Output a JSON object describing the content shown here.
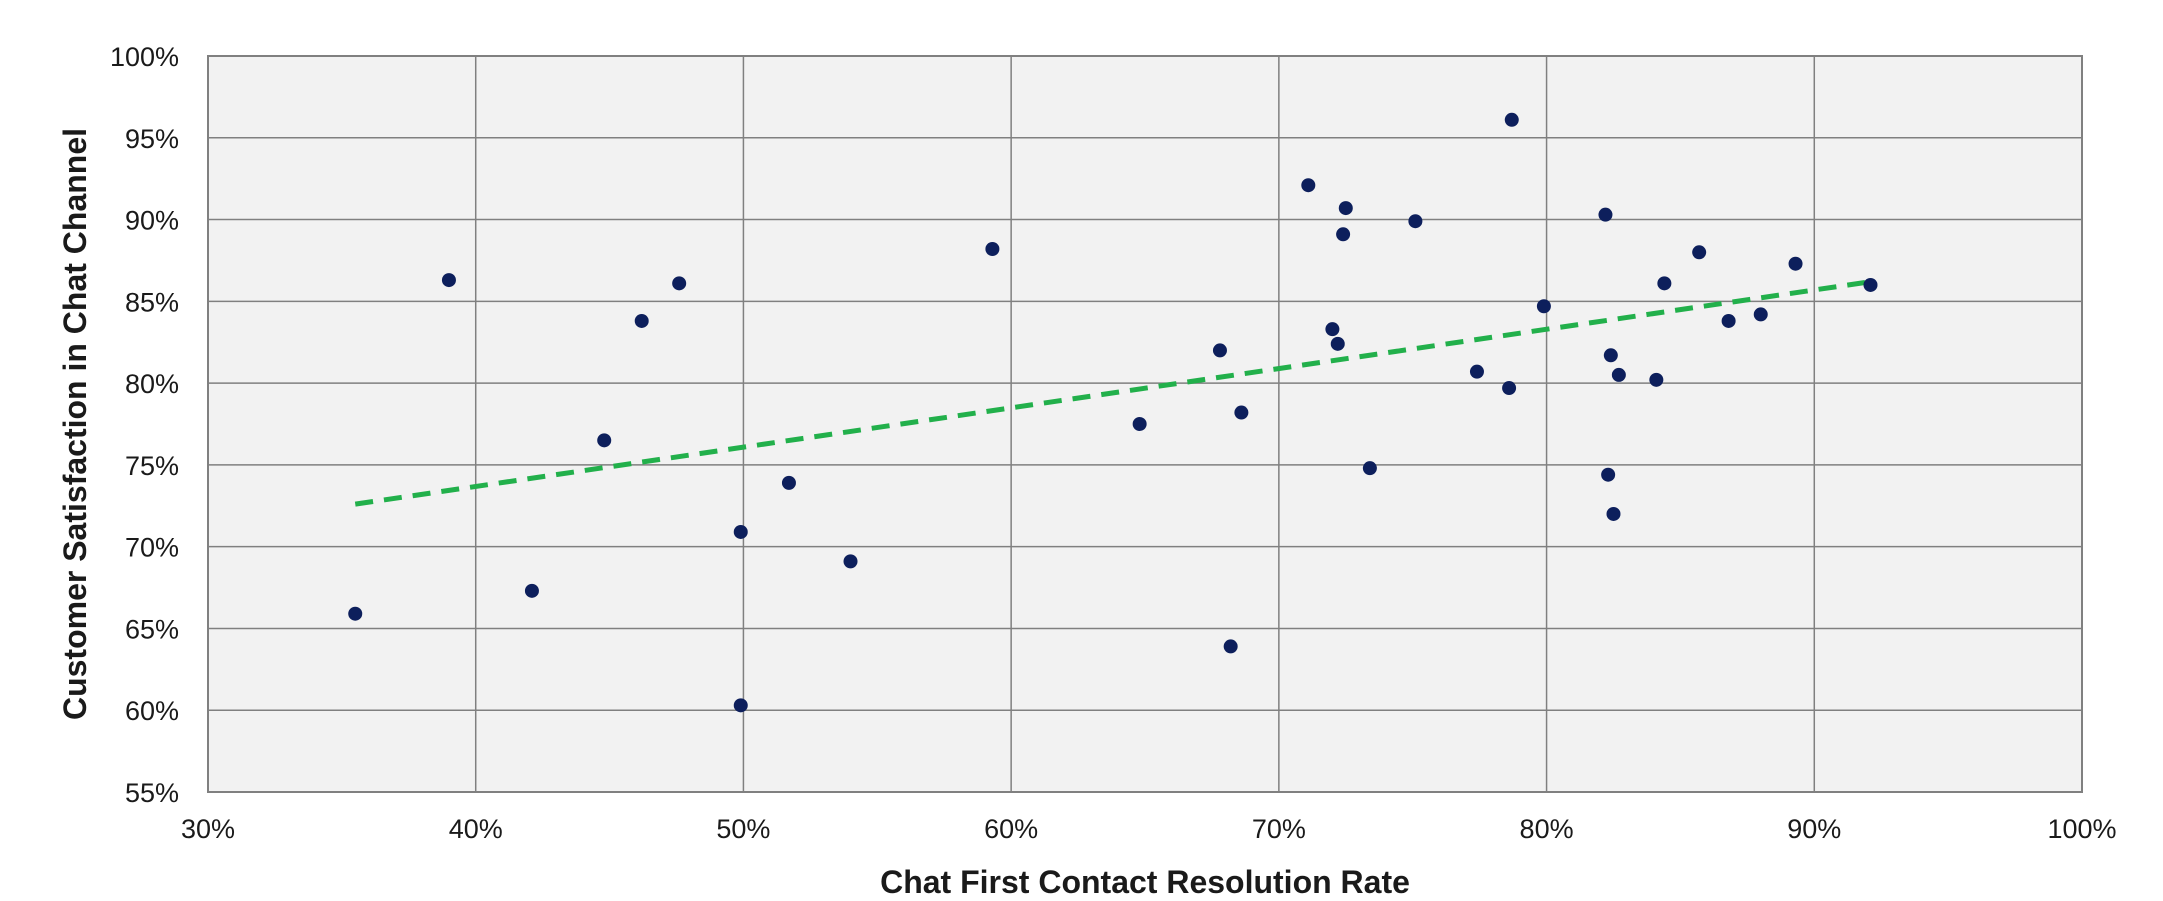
{
  "chart_data": {
    "type": "scatter",
    "title": "",
    "xlabel": "Chat First Contact Resolution Rate",
    "ylabel": "Customer Satisfaction in Chat Channel",
    "xlim": [
      0.3,
      1.0
    ],
    "ylim": [
      0.55,
      1.0
    ],
    "x_ticks": [
      0.3,
      0.4,
      0.5,
      0.6,
      0.7,
      0.8,
      0.9,
      1.0
    ],
    "x_tick_labels": [
      "30%",
      "40%",
      "50%",
      "60%",
      "70%",
      "80%",
      "90%",
      "100%"
    ],
    "y_ticks": [
      0.55,
      0.6,
      0.65,
      0.7,
      0.75,
      0.8,
      0.85,
      0.9,
      0.95,
      1.0
    ],
    "y_tick_labels": [
      "55%",
      "60%",
      "65%",
      "70%",
      "75%",
      "80%",
      "85%",
      "90%",
      "95%",
      "100%"
    ],
    "grid": true,
    "legend": "none",
    "colors": {
      "plot_background": "#f2f2f2",
      "grid": "#808080",
      "marker": "#0d1f5c",
      "trendline": "#22b04b"
    },
    "points": [
      {
        "x": 0.355,
        "y": 0.659
      },
      {
        "x": 0.39,
        "y": 0.863
      },
      {
        "x": 0.421,
        "y": 0.673
      },
      {
        "x": 0.448,
        "y": 0.765
      },
      {
        "x": 0.462,
        "y": 0.838
      },
      {
        "x": 0.476,
        "y": 0.861
      },
      {
        "x": 0.499,
        "y": 0.709
      },
      {
        "x": 0.499,
        "y": 0.603
      },
      {
        "x": 0.517,
        "y": 0.739
      },
      {
        "x": 0.54,
        "y": 0.691
      },
      {
        "x": 0.593,
        "y": 0.882
      },
      {
        "x": 0.648,
        "y": 0.775
      },
      {
        "x": 0.678,
        "y": 0.82
      },
      {
        "x": 0.682,
        "y": 0.639
      },
      {
        "x": 0.686,
        "y": 0.782
      },
      {
        "x": 0.711,
        "y": 0.921
      },
      {
        "x": 0.72,
        "y": 0.833
      },
      {
        "x": 0.722,
        "y": 0.824
      },
      {
        "x": 0.724,
        "y": 0.891
      },
      {
        "x": 0.725,
        "y": 0.907
      },
      {
        "x": 0.734,
        "y": 0.748
      },
      {
        "x": 0.751,
        "y": 0.899
      },
      {
        "x": 0.774,
        "y": 0.807
      },
      {
        "x": 0.786,
        "y": 0.797
      },
      {
        "x": 0.787,
        "y": 0.961
      },
      {
        "x": 0.799,
        "y": 0.847
      },
      {
        "x": 0.822,
        "y": 0.903
      },
      {
        "x": 0.823,
        "y": 0.744
      },
      {
        "x": 0.824,
        "y": 0.817
      },
      {
        "x": 0.825,
        "y": 0.72
      },
      {
        "x": 0.827,
        "y": 0.805
      },
      {
        "x": 0.841,
        "y": 0.802
      },
      {
        "x": 0.844,
        "y": 0.861
      },
      {
        "x": 0.857,
        "y": 0.88
      },
      {
        "x": 0.868,
        "y": 0.838
      },
      {
        "x": 0.88,
        "y": 0.842
      },
      {
        "x": 0.893,
        "y": 0.873
      },
      {
        "x": 0.921,
        "y": 0.86
      }
    ],
    "trendline": {
      "style": "dashed",
      "x_start": 0.355,
      "y_start": 0.726,
      "x_end": 0.921,
      "y_end": 0.862
    }
  }
}
